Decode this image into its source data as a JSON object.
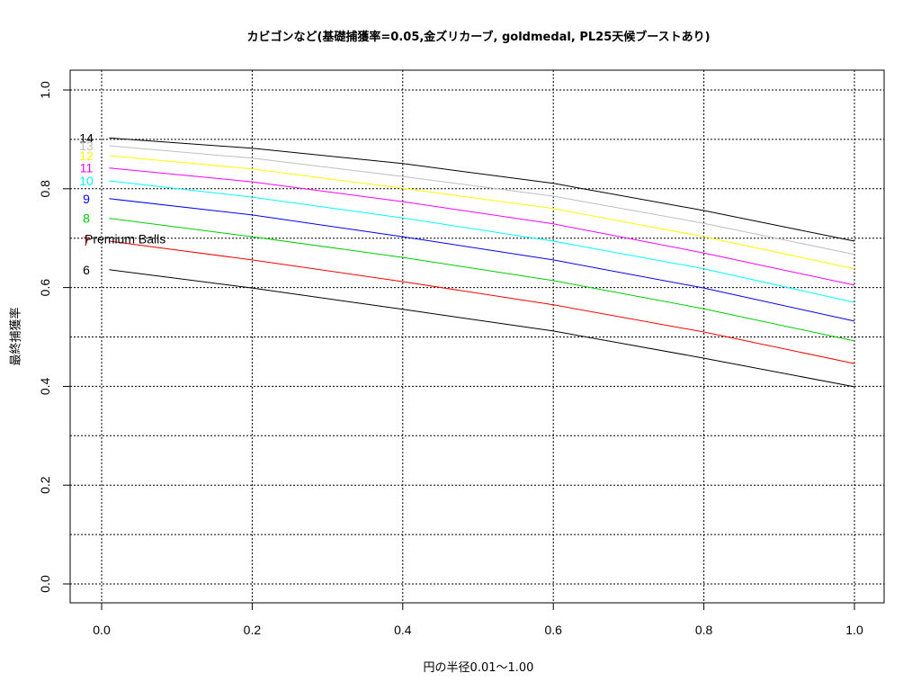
{
  "chart_data": {
    "type": "line",
    "title": "カビゴンなど(基礎捕獲率=0.05,金ズリカーブ, goldmedal, PL25天候ブーストあり)",
    "xlabel": "円の半径0.01～1.00",
    "ylabel": "最終捕獲率",
    "xlim": [
      0.0,
      1.0
    ],
    "ylim": [
      0.0,
      1.0
    ],
    "x_ticks": [
      "0.0",
      "0.2",
      "0.4",
      "0.6",
      "0.8",
      "1.0"
    ],
    "y_ticks": [
      "0.0",
      "0.2",
      "0.4",
      "0.6",
      "0.8",
      "1.0"
    ],
    "grid": true,
    "x": [
      0.01,
      0.2,
      0.4,
      0.6,
      0.8,
      1.0
    ],
    "series": [
      {
        "name": "14",
        "color": "#000000",
        "values": [
          0.903,
          0.882,
          0.851,
          0.811,
          0.756,
          0.694
        ]
      },
      {
        "name": "13",
        "color": "#bebebe",
        "values": [
          0.887,
          0.862,
          0.825,
          0.785,
          0.73,
          0.667
        ]
      },
      {
        "name": "12",
        "color": "#ffff00",
        "values": [
          0.867,
          0.84,
          0.801,
          0.76,
          0.703,
          0.638
        ]
      },
      {
        "name": "11",
        "color": "#ff00ff",
        "values": [
          0.842,
          0.814,
          0.774,
          0.729,
          0.67,
          0.605
        ]
      },
      {
        "name": "10",
        "color": "#00ffff",
        "values": [
          0.816,
          0.783,
          0.741,
          0.694,
          0.638,
          0.57
        ]
      },
      {
        "name": "9",
        "color": "#0000ff",
        "values": [
          0.78,
          0.747,
          0.703,
          0.656,
          0.599,
          0.532
        ]
      },
      {
        "name": "8",
        "color": "#00cd00",
        "values": [
          0.74,
          0.703,
          0.661,
          0.614,
          0.557,
          0.492
        ]
      },
      {
        "name": "7",
        "color": "#ff0000",
        "values": [
          0.694,
          0.656,
          0.612,
          0.565,
          0.51,
          0.446
        ]
      },
      {
        "name": "6",
        "color": "#000000",
        "values": [
          0.636,
          0.599,
          0.556,
          0.512,
          0.457,
          0.399
        ]
      }
    ],
    "annotations": [
      {
        "text": "Premium Balls",
        "x": -0.02,
        "y": 0.697
      }
    ],
    "legend_position": "inline-left"
  }
}
